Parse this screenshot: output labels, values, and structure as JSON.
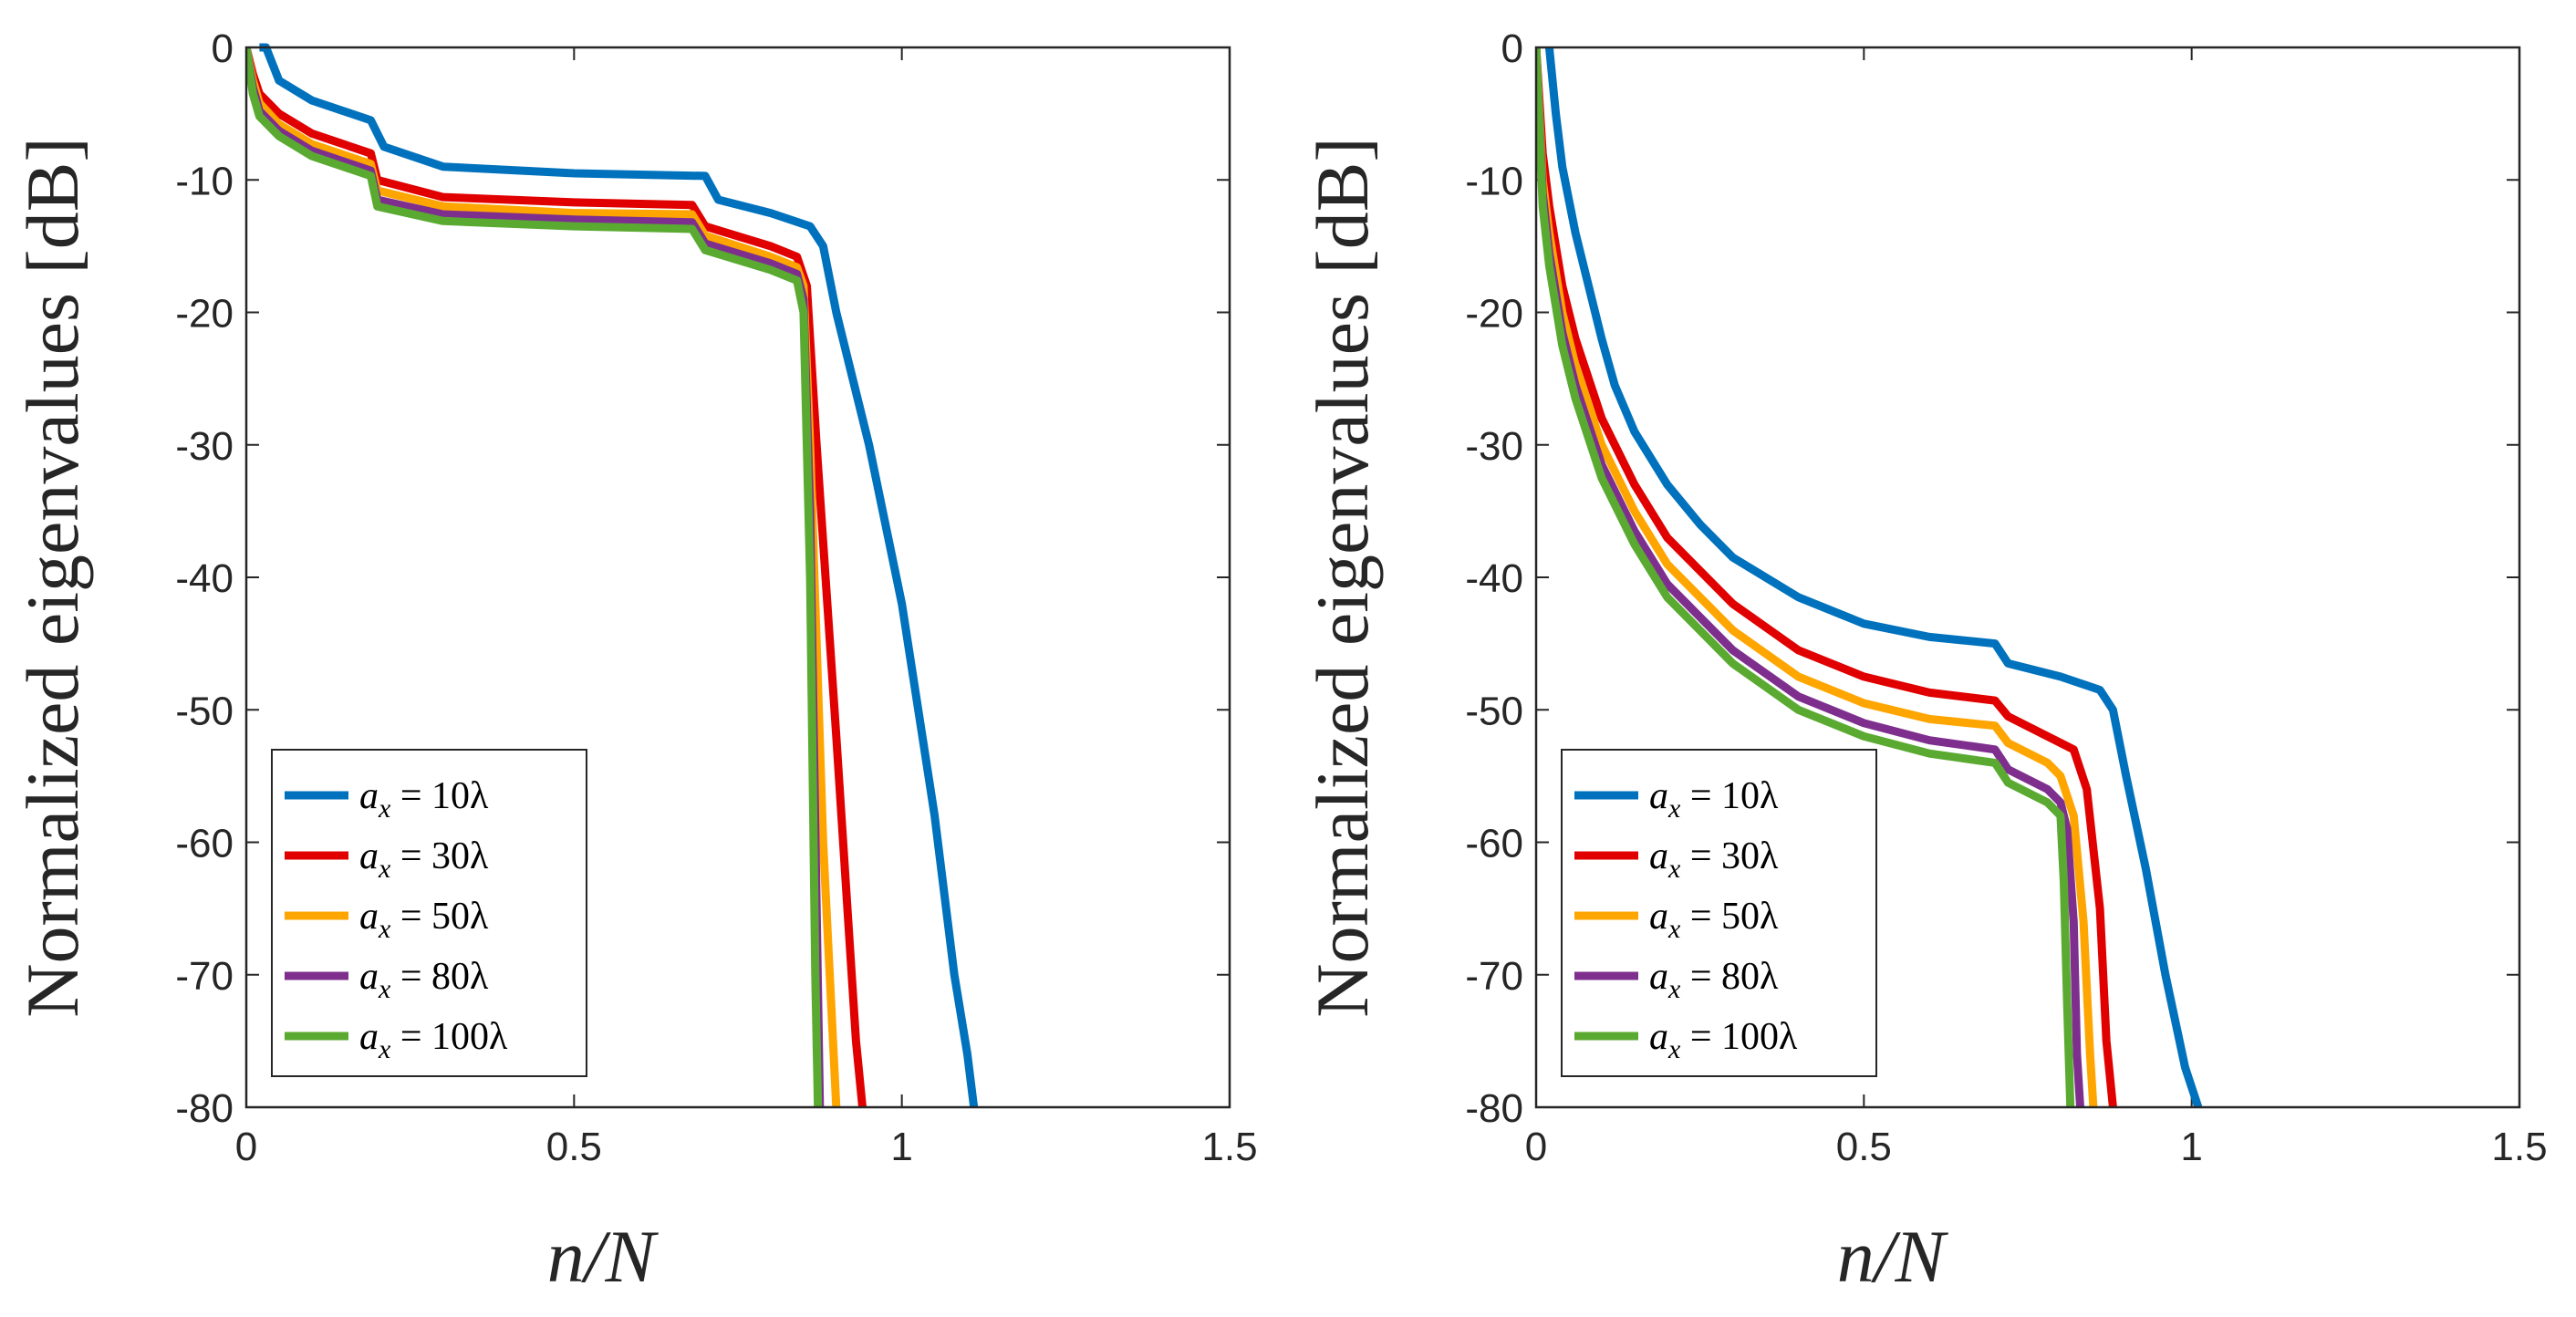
{
  "chart_data": [
    {
      "type": "line",
      "title": "",
      "xlabel": "n/N",
      "ylabel": "Normalized eigenvalues [dB]",
      "xlim": [
        0,
        1.5
      ],
      "ylim": [
        -80,
        0
      ],
      "xticks": [
        0,
        0.5,
        1,
        1.5
      ],
      "xtick_labels": [
        "0",
        "0.5",
        "1",
        "1.5"
      ],
      "yticks": [
        0,
        -10,
        -20,
        -30,
        -40,
        -50,
        -60,
        -70,
        -80
      ],
      "ytick_labels": [
        "0",
        "-10",
        "-20",
        "-30",
        "-40",
        "-50",
        "-60",
        "-70",
        "-80"
      ],
      "legend_position": "bottom-left",
      "series": [
        {
          "name": "a_x = 10λ",
          "color": "#0072BD",
          "x": [
            0.02,
            0.03,
            0.05,
            0.1,
            0.19,
            0.21,
            0.3,
            0.5,
            0.7,
            0.72,
            0.8,
            0.86,
            0.88,
            0.9,
            0.95,
            1.0,
            1.05,
            1.08,
            1.1,
            1.11
          ],
          "y": [
            0,
            0,
            -2.5,
            -4,
            -5.5,
            -7.5,
            -9,
            -9.5,
            -9.7,
            -11.5,
            -12.5,
            -13.5,
            -15,
            -20,
            -30,
            -42,
            -58,
            -70,
            -76,
            -80
          ]
        },
        {
          "name": "a_x = 30λ",
          "color": "#E00000",
          "x": [
            0,
            0.01,
            0.02,
            0.05,
            0.1,
            0.19,
            0.2,
            0.3,
            0.5,
            0.68,
            0.7,
            0.8,
            0.84,
            0.855,
            0.87,
            0.9,
            0.93,
            0.94
          ],
          "y": [
            0,
            -2,
            -3.5,
            -5,
            -6.5,
            -8,
            -10,
            -11.3,
            -11.7,
            -11.9,
            -13.5,
            -15,
            -15.8,
            -18,
            -30,
            -52,
            -75,
            -80
          ]
        },
        {
          "name": "a_x = 50λ",
          "color": "#FFA500",
          "x": [
            0,
            0.01,
            0.02,
            0.05,
            0.1,
            0.19,
            0.2,
            0.3,
            0.5,
            0.68,
            0.7,
            0.8,
            0.84,
            0.85,
            0.86,
            0.88,
            0.9
          ],
          "y": [
            0,
            -2.5,
            -4.2,
            -5.8,
            -7.3,
            -8.8,
            -10.8,
            -12,
            -12.5,
            -12.6,
            -14.2,
            -15.8,
            -16.6,
            -18,
            -30,
            -60,
            -80
          ]
        },
        {
          "name": "a_x = 80λ",
          "color": "#7E2F8E",
          "x": [
            0,
            0.01,
            0.02,
            0.05,
            0.1,
            0.19,
            0.2,
            0.3,
            0.5,
            0.68,
            0.7,
            0.8,
            0.84,
            0.85,
            0.86,
            0.87,
            0.875
          ],
          "y": [
            0,
            -3,
            -4.8,
            -6.3,
            -7.8,
            -9.3,
            -11.5,
            -12.6,
            -13,
            -13.2,
            -14.8,
            -16.3,
            -17.1,
            -19,
            -35,
            -65,
            -80
          ]
        },
        {
          "name": "a_x = 100λ",
          "color": "#5AAA32",
          "x": [
            0,
            0.01,
            0.02,
            0.05,
            0.1,
            0.19,
            0.2,
            0.3,
            0.5,
            0.68,
            0.7,
            0.8,
            0.84,
            0.85,
            0.86,
            0.868,
            0.872
          ],
          "y": [
            0,
            -3.5,
            -5.2,
            -6.7,
            -8.2,
            -9.7,
            -12,
            -13.1,
            -13.5,
            -13.7,
            -15.3,
            -16.8,
            -17.6,
            -20,
            -40,
            -70,
            -80
          ]
        }
      ]
    },
    {
      "type": "line",
      "title": "",
      "xlabel": "n/N",
      "ylabel": "Normalized eigenvalues [dB]",
      "xlim": [
        0,
        1.5
      ],
      "ylim": [
        -80,
        0
      ],
      "xticks": [
        0,
        0.5,
        1,
        1.5
      ],
      "xtick_labels": [
        "0",
        "0.5",
        "1",
        "1.5"
      ],
      "yticks": [
        0,
        -10,
        -20,
        -30,
        -40,
        -50,
        -60,
        -70,
        -80
      ],
      "ytick_labels": [
        "0",
        "-10",
        "-20",
        "-30",
        "-40",
        "-50",
        "-60",
        "-70",
        "-80"
      ],
      "legend_position": "bottom-left",
      "series": [
        {
          "name": "a_x = 10λ",
          "color": "#0072BD",
          "x": [
            0.02,
            0.03,
            0.04,
            0.06,
            0.08,
            0.1,
            0.12,
            0.15,
            0.2,
            0.25,
            0.3,
            0.4,
            0.5,
            0.6,
            0.7,
            0.72,
            0.8,
            0.86,
            0.88,
            0.9,
            0.93,
            0.96,
            0.99,
            1.01
          ],
          "y": [
            0,
            -5,
            -9,
            -14,
            -18,
            -22,
            -25.5,
            -29,
            -33,
            -36,
            -38.5,
            -41.5,
            -43.5,
            -44.5,
            -45,
            -46.5,
            -47.5,
            -48.5,
            -50,
            -55,
            -62,
            -70,
            -77,
            -80
          ]
        },
        {
          "name": "a_x = 30λ",
          "color": "#E00000",
          "x": [
            0,
            0.01,
            0.02,
            0.04,
            0.06,
            0.08,
            0.1,
            0.15,
            0.2,
            0.3,
            0.4,
            0.5,
            0.6,
            0.7,
            0.72,
            0.78,
            0.82,
            0.84,
            0.86,
            0.87,
            0.88
          ],
          "y": [
            0,
            -8,
            -12,
            -18,
            -22,
            -25,
            -28,
            -33,
            -37,
            -42,
            -45.5,
            -47.5,
            -48.7,
            -49.3,
            -50.5,
            -52,
            -53,
            -56,
            -65,
            -75,
            -80
          ]
        },
        {
          "name": "a_x = 50λ",
          "color": "#FFA500",
          "x": [
            0,
            0.01,
            0.02,
            0.04,
            0.06,
            0.08,
            0.1,
            0.15,
            0.2,
            0.3,
            0.4,
            0.5,
            0.6,
            0.7,
            0.72,
            0.78,
            0.8,
            0.82,
            0.835,
            0.845,
            0.85
          ],
          "y": [
            0,
            -10,
            -14,
            -20,
            -24,
            -27,
            -30,
            -35,
            -39,
            -44,
            -47.5,
            -49.5,
            -50.7,
            -51.2,
            -52.5,
            -54,
            -55,
            -58,
            -66,
            -76,
            -80
          ]
        },
        {
          "name": "a_x = 80λ",
          "color": "#7E2F8E",
          "x": [
            0,
            0.01,
            0.02,
            0.04,
            0.06,
            0.08,
            0.1,
            0.15,
            0.2,
            0.3,
            0.4,
            0.5,
            0.6,
            0.7,
            0.72,
            0.78,
            0.8,
            0.81,
            0.82,
            0.825,
            0.83
          ],
          "y": [
            0,
            -11,
            -15.5,
            -21.5,
            -25.5,
            -28.5,
            -31.5,
            -36.5,
            -40.5,
            -45.5,
            -49,
            -51,
            -52.3,
            -53,
            -54.5,
            -56,
            -57,
            -59,
            -66,
            -76,
            -80
          ]
        },
        {
          "name": "a_x = 100λ",
          "color": "#5AAA32",
          "x": [
            0,
            0.01,
            0.02,
            0.04,
            0.06,
            0.08,
            0.1,
            0.15,
            0.2,
            0.3,
            0.4,
            0.5,
            0.6,
            0.7,
            0.72,
            0.78,
            0.8,
            0.805,
            0.81,
            0.815
          ],
          "y": [
            0,
            -12,
            -16.5,
            -22.5,
            -26.5,
            -29.5,
            -32.5,
            -37.5,
            -41.5,
            -46.5,
            -50,
            -52,
            -53.3,
            -54,
            -55.5,
            -57,
            -58,
            -63,
            -72,
            -80
          ]
        }
      ]
    }
  ]
}
